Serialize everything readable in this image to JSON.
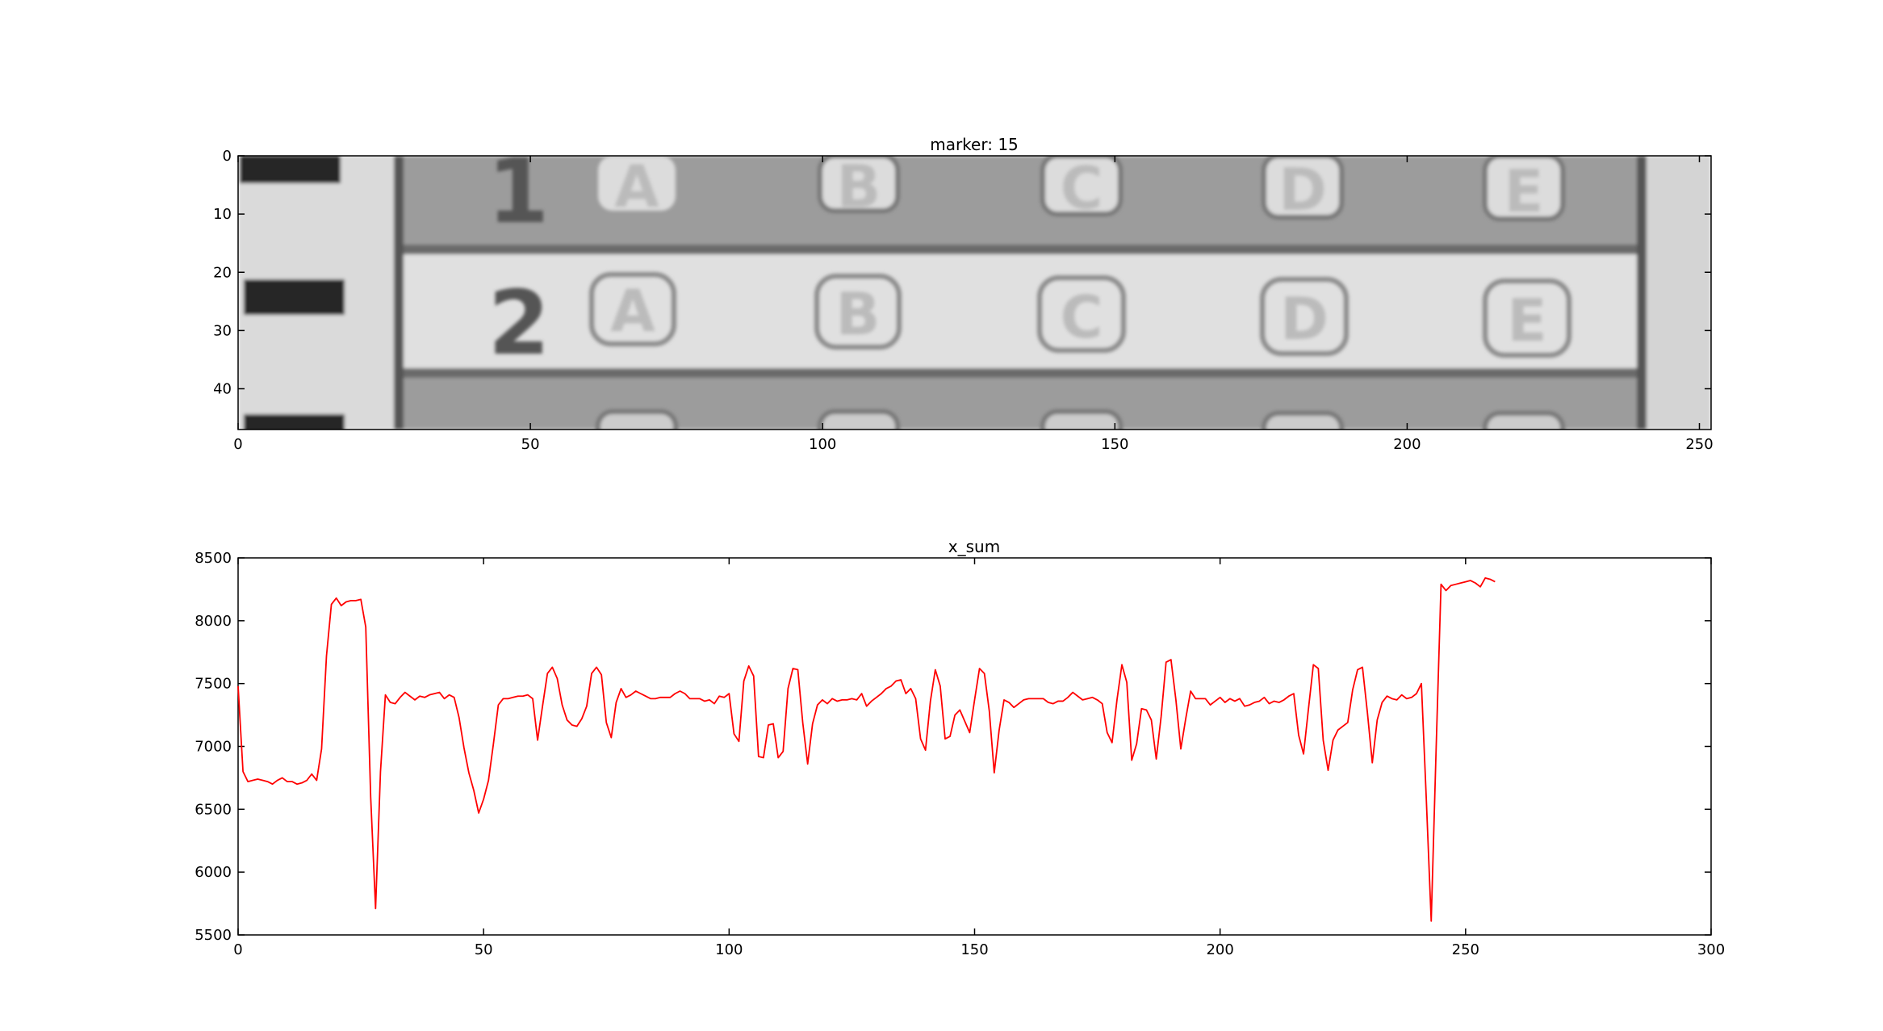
{
  "chart_data": [
    {
      "type": "image",
      "title": "marker: 15",
      "xlim": [
        0,
        252
      ],
      "ylim": [
        47,
        0
      ],
      "xticks": [
        0,
        50,
        100,
        150,
        200,
        250
      ],
      "yticks": [
        0,
        10,
        20,
        30,
        40
      ],
      "rows": [
        {
          "number": "1",
          "choices": [
            "A",
            "B",
            "C",
            "D",
            "E"
          ]
        },
        {
          "number": "2",
          "choices": [
            "A",
            "B",
            "C",
            "D",
            "E"
          ]
        }
      ]
    },
    {
      "type": "line",
      "title": "x_sum",
      "xlim": [
        0,
        300
      ],
      "ylim": [
        5500,
        8500
      ],
      "xticks": [
        0,
        50,
        100,
        150,
        200,
        250,
        300
      ],
      "yticks": [
        5500,
        6000,
        6500,
        7000,
        7500,
        8000,
        8500
      ],
      "grid": false,
      "color": "#ff0000",
      "series": [
        {
          "values": [
            7480,
            6800,
            6720,
            6730,
            6740,
            6730,
            6720,
            6700,
            6730,
            6750,
            6720,
            6720,
            6700,
            6710,
            6730,
            6780,
            6730,
            6980,
            7720,
            8130,
            8180,
            8120,
            8150,
            8160,
            8160,
            8170,
            7950,
            6600,
            5710,
            6800,
            7410,
            7350,
            7340,
            7390,
            7430,
            7400,
            7370,
            7400,
            7390,
            7410,
            7420,
            7430,
            7380,
            7410,
            7390,
            7230,
            6990,
            6790,
            6650,
            6470,
            6580,
            6730,
            7020,
            7330,
            7380,
            7380,
            7390,
            7400,
            7400,
            7410,
            7380,
            7050,
            7320,
            7580,
            7630,
            7540,
            7330,
            7210,
            7170,
            7160,
            7220,
            7320,
            7580,
            7630,
            7570,
            7190,
            7070,
            7350,
            7460,
            7390,
            7410,
            7440,
            7420,
            7400,
            7380,
            7380,
            7390,
            7390,
            7390,
            7420,
            7440,
            7420,
            7380,
            7380,
            7380,
            7360,
            7370,
            7340,
            7400,
            7390,
            7420,
            7100,
            7040,
            7520,
            7640,
            7560,
            6920,
            6910,
            7170,
            7180,
            6910,
            6960,
            7460,
            7620,
            7610,
            7190,
            6860,
            7180,
            7330,
            7370,
            7340,
            7380,
            7360,
            7370,
            7370,
            7380,
            7370,
            7420,
            7320,
            7360,
            7390,
            7420,
            7460,
            7480,
            7520,
            7530,
            7420,
            7460,
            7380,
            7060,
            6970,
            7360,
            7610,
            7480,
            7060,
            7080,
            7250,
            7290,
            7200,
            7110,
            7370,
            7620,
            7580,
            7280,
            6790,
            7130,
            7370,
            7350,
            7310,
            7340,
            7370,
            7380,
            7380,
            7380,
            7380,
            7350,
            7340,
            7360,
            7360,
            7390,
            7430,
            7400,
            7370,
            7380,
            7390,
            7370,
            7340,
            7110,
            7030,
            7370,
            7650,
            7510,
            6890,
            7020,
            7300,
            7290,
            7210,
            6900,
            7240,
            7670,
            7690,
            7370,
            6980,
            7220,
            7440,
            7380,
            7380,
            7380,
            7330,
            7360,
            7390,
            7350,
            7380,
            7360,
            7380,
            7320,
            7330,
            7350,
            7360,
            7390,
            7340,
            7360,
            7350,
            7370,
            7400,
            7420,
            7090,
            6940,
            7300,
            7650,
            7620,
            7050,
            6810,
            7050,
            7130,
            7160,
            7190,
            7450,
            7610,
            7630,
            7270,
            6870,
            7210,
            7350,
            7400,
            7380,
            7370,
            7410,
            7380,
            7390,
            7420,
            7500,
            6580,
            5610,
            6980,
            8290,
            8240,
            8280,
            8290,
            8300,
            8310,
            8320,
            8300,
            8270,
            8340,
            8330,
            8310
          ]
        }
      ]
    }
  ]
}
